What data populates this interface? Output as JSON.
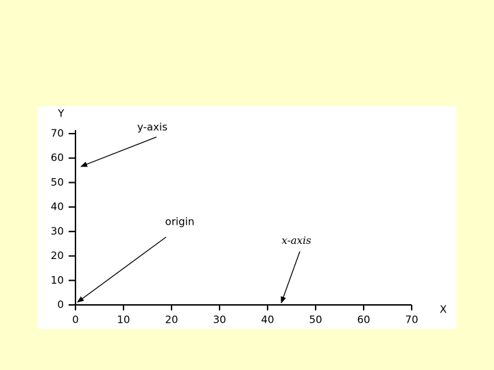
{
  "chart_data": {
    "type": "axes",
    "x_label": "X",
    "y_label": "Y",
    "xlim": [
      0,
      70
    ],
    "ylim": [
      0,
      70
    ],
    "xticks": [
      0,
      10,
      20,
      30,
      40,
      50,
      60,
      70
    ],
    "yticks": [
      0,
      10,
      20,
      30,
      40,
      50,
      60,
      70
    ],
    "annotations": [
      "y-axis",
      "origin",
      "x-axis"
    ]
  }
}
